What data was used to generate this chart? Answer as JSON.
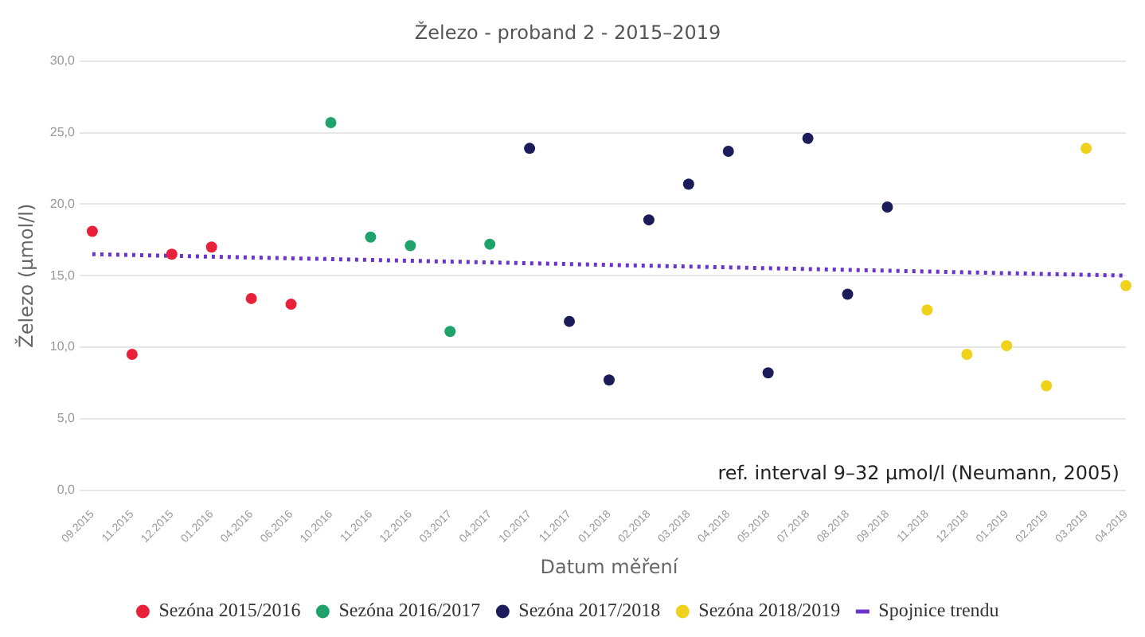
{
  "chart_data": {
    "type": "scatter",
    "title": "Železo - proband 2 - 2015–2019",
    "xlabel": "Datum měření",
    "ylabel": "Železo (µmol/l)",
    "categories": [
      "09.2015",
      "11.2015",
      "12.2015",
      "01.2016",
      "04.2016",
      "06.2016",
      "10.2016",
      "11.2016",
      "12.2016",
      "03.2017",
      "04.2017",
      "10.2017",
      "11.2017",
      "01.2018",
      "02.2018",
      "03.2018",
      "04.2018",
      "05.2018",
      "07.2018",
      "08.2018",
      "09.2018",
      "11.2018",
      "12.2018",
      "01.2019",
      "02.2019",
      "03.2019",
      "04.2019"
    ],
    "series": [
      {
        "name": "Sezóna 2015/2016",
        "color": "#e8203a",
        "values": [
          18.1,
          9.5,
          16.5,
          17.0,
          13.4,
          13.0,
          null,
          null,
          null,
          null,
          null,
          null,
          null,
          null,
          null,
          null,
          null,
          null,
          null,
          null,
          null,
          null,
          null,
          null,
          null,
          null,
          null
        ]
      },
      {
        "name": "Sezóna 2016/2017",
        "color": "#1fa36b",
        "values": [
          null,
          null,
          null,
          null,
          null,
          null,
          25.7,
          17.7,
          17.1,
          11.1,
          17.2,
          null,
          null,
          null,
          null,
          null,
          null,
          null,
          null,
          null,
          null,
          null,
          null,
          null,
          null,
          null,
          null
        ]
      },
      {
        "name": "Sezóna 2017/2018",
        "color": "#1c1c5a",
        "values": [
          null,
          null,
          null,
          null,
          null,
          null,
          null,
          null,
          null,
          null,
          null,
          23.9,
          11.8,
          7.7,
          18.9,
          21.4,
          23.7,
          8.2,
          24.6,
          13.7,
          19.8,
          null,
          null,
          null,
          null,
          null,
          null
        ]
      },
      {
        "name": "Sezóna 2018/2019",
        "color": "#f0d21c",
        "values": [
          null,
          null,
          null,
          null,
          null,
          null,
          null,
          null,
          null,
          null,
          null,
          null,
          null,
          null,
          null,
          null,
          null,
          null,
          null,
          null,
          null,
          12.6,
          9.5,
          10.1,
          7.3,
          23.9,
          14.3
        ]
      },
      {
        "name": "Spojnice trendu",
        "type": "line",
        "color": "#6a35c8",
        "line_style": "dotted",
        "marker": "none",
        "x": [
          "09.2015",
          "04.2019"
        ],
        "values": [
          16.5,
          15.0
        ]
      }
    ],
    "ylim": [
      0,
      30
    ],
    "yticks": [
      {
        "value": 0,
        "label": "0,0"
      },
      {
        "value": 5,
        "label": "5,0"
      },
      {
        "value": 10,
        "label": "10,0"
      },
      {
        "value": 15,
        "label": "15,0"
      },
      {
        "value": 20,
        "label": "20,0"
      },
      {
        "value": 25,
        "label": "25,0"
      },
      {
        "value": 30,
        "label": "30,0"
      }
    ],
    "grid": "y",
    "legend": "bottom",
    "marker": "circle",
    "annotations": [
      "ref. interval 9–32 µmol/l (Neumann, 2005)"
    ]
  }
}
